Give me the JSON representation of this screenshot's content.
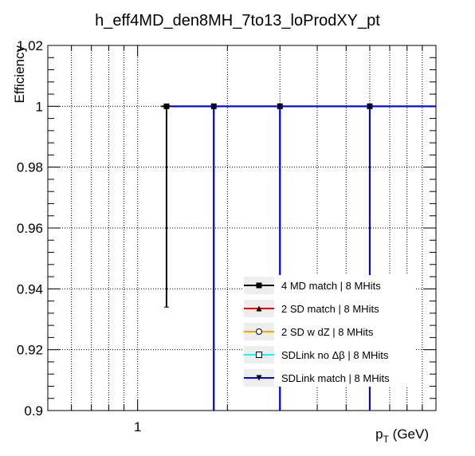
{
  "chart_data": {
    "type": "scatter",
    "title": "h_eff4MD_den8MH_7to13_loProdXY_pt",
    "xlabel_main": "p",
    "xlabel_sub": "T",
    "xlabel_unit": " (GeV)",
    "ylabel": "Efficiency",
    "x_scale": "log",
    "xlim": [
      0.5,
      10
    ],
    "ylim": [
      0.9,
      1.02
    ],
    "x_tick_labels": [
      {
        "value": 1,
        "label": "1"
      }
    ],
    "y_tick_labels": [
      {
        "value": 0.9,
        "label": "0.9"
      },
      {
        "value": 0.92,
        "label": "0.92"
      },
      {
        "value": 0.94,
        "label": "0.94"
      },
      {
        "value": 0.96,
        "label": "0.96"
      },
      {
        "value": 0.98,
        "label": "0.98"
      },
      {
        "value": 1.0,
        "label": "1"
      },
      {
        "value": 1.02,
        "label": "1.02"
      }
    ],
    "grid": true,
    "legend_position": "bottom-right",
    "series": [
      {
        "name": "4 MD match | 8 MHits",
        "color": "#000000",
        "marker": "square-filled",
        "points": [
          {
            "x": 1.25,
            "xlow": 1.2,
            "xhigh": 1.3,
            "y": 1.0,
            "ylow": 0.934,
            "yhigh": 1.0
          },
          {
            "x": 1.8,
            "xlow": 1.3,
            "xhigh": 2.5,
            "y": 1.0,
            "ylow": 0.9,
            "yhigh": 1.0
          },
          {
            "x": 3.0,
            "xlow": 2.5,
            "xhigh": 4.0,
            "y": 1.0,
            "ylow": 0.9,
            "yhigh": 1.0
          },
          {
            "x": 6.0,
            "xlow": 4.0,
            "xhigh": 10.0,
            "y": 1.0,
            "ylow": 0.9,
            "yhigh": 1.0
          }
        ]
      },
      {
        "name": "2 SD match | 8 MHits",
        "color": "#ff0000",
        "marker": "triangle-up-filled",
        "points": []
      },
      {
        "name": "2 SD w dZ | 8 MHits",
        "color": "#ffa500",
        "marker": "circle-open",
        "points": []
      },
      {
        "name": "SDLink no Δβ | 8 MHits",
        "color": "#00ffff",
        "marker": "square-open",
        "points": []
      },
      {
        "name": "SDLink match | 8 MHits",
        "color": "#0000ff",
        "marker": "triangle-down-filled",
        "points": [
          {
            "x": 1.8,
            "xlow": 1.3,
            "xhigh": 2.5,
            "y": 1.0,
            "ylow": 0.9,
            "yhigh": 1.0
          },
          {
            "x": 3.0,
            "xlow": 2.5,
            "xhigh": 4.0,
            "y": 1.0,
            "ylow": 0.9,
            "yhigh": 1.0
          },
          {
            "x": 6.0,
            "xlow": 4.0,
            "xhigh": 10.0,
            "y": 1.0,
            "ylow": 0.9,
            "yhigh": 1.0
          }
        ]
      }
    ]
  }
}
